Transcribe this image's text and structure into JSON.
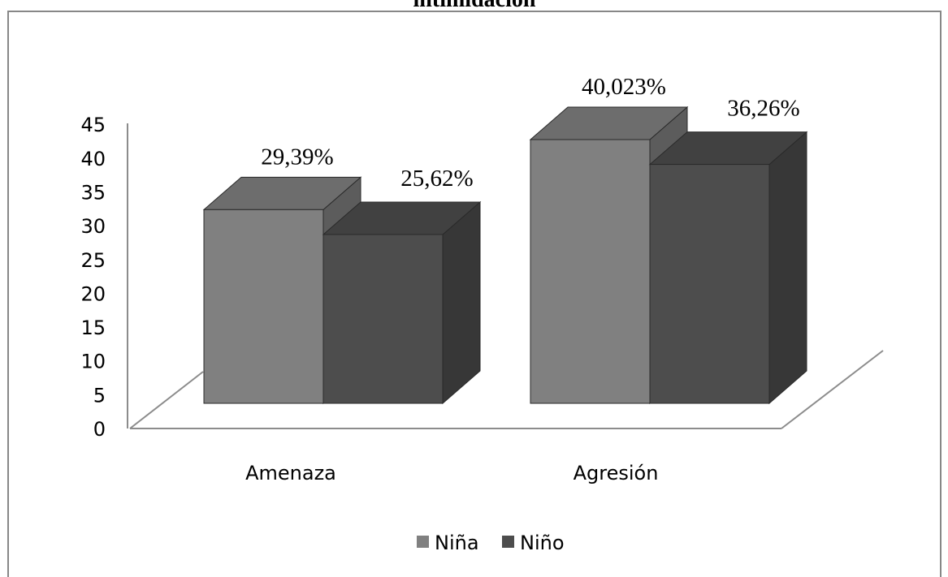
{
  "chart_data": {
    "type": "bar",
    "title": "intimidación",
    "categories": [
      "Amenaza",
      "Agresión"
    ],
    "series": [
      {
        "name": "Niña",
        "values": [
          29.39,
          40.023
        ],
        "labels": [
          "29,39%",
          "40,023%"
        ],
        "color": "#808080"
      },
      {
        "name": "Niño",
        "values": [
          25.62,
          36.26
        ],
        "labels": [
          "25,62%",
          "36,26%"
        ],
        "color": "#4d4d4d"
      }
    ],
    "ylim": [
      0,
      45
    ],
    "yticks": [
      0,
      5,
      10,
      15,
      20,
      25,
      30,
      35,
      40,
      45
    ],
    "grid": false,
    "legend": "bottom",
    "style": "3d-clustered-column"
  }
}
